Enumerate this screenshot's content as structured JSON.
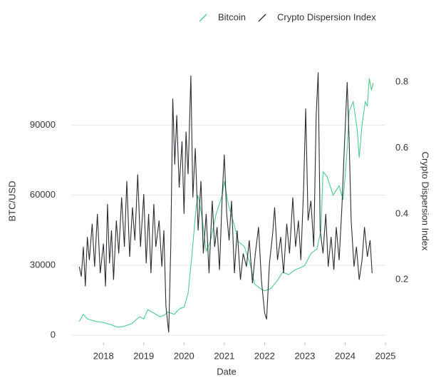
{
  "chart_data": {
    "type": "line",
    "xlabel": "Date",
    "ylabel": "BTC/USD",
    "y2label": "Crypto Dispersion Index",
    "xlim": [
      2017.2,
      2025.0
    ],
    "xticks": [
      2018,
      2019,
      2020,
      2021,
      2022,
      2023,
      2024,
      2025
    ],
    "ylim": [
      -3000,
      113000
    ],
    "yticks": [
      0,
      30000,
      60000,
      90000
    ],
    "y2lim": [
      0.01,
      0.833
    ],
    "y2ticks": [
      0.2,
      0.4,
      0.6,
      0.8
    ],
    "grid": true,
    "legend": "top",
    "series": [
      {
        "name": "Bitcoin",
        "color": "#4ccb8d",
        "x": [
          2017.4,
          2017.5,
          2017.6,
          2017.8,
          2018.0,
          2018.2,
          2018.35,
          2018.5,
          2018.7,
          2018.9,
          2019.0,
          2019.1,
          2019.2,
          2019.4,
          2019.5,
          2019.6,
          2019.75,
          2019.9,
          2020.0,
          2020.1,
          2020.2,
          2020.3,
          2020.35,
          2020.45,
          2020.55,
          2020.65,
          2020.8,
          2020.95,
          2021.0,
          2021.1,
          2021.25,
          2021.35,
          2021.5,
          2021.65,
          2021.75,
          2021.9,
          2022.0,
          2022.15,
          2022.3,
          2022.45,
          2022.6,
          2022.75,
          2022.9,
          2023.0,
          2023.15,
          2023.3,
          2023.4,
          2023.45,
          2023.55,
          2023.7,
          2023.85,
          2023.95,
          2024.0,
          2024.05,
          2024.1,
          2024.2,
          2024.3,
          2024.35,
          2024.42,
          2024.5,
          2024.55,
          2024.6,
          2024.65,
          2024.7
        ],
        "values": [
          6000,
          9000,
          7000,
          6000,
          5500,
          4500,
          3500,
          3800,
          5000,
          8000,
          7000,
          11000,
          10000,
          8000,
          8500,
          10000,
          9000,
          11500,
          12000,
          18000,
          35000,
          55000,
          60000,
          50000,
          36000,
          40000,
          52000,
          60000,
          66000,
          56000,
          47000,
          40000,
          38000,
          30000,
          22000,
          20000,
          19000,
          20000,
          23000,
          27000,
          26000,
          28000,
          29000,
          30000,
          35000,
          37000,
          45000,
          70000,
          68000,
          60000,
          64000,
          58000,
          68000,
          80000,
          96000,
          100000,
          88000,
          76000,
          90000,
          100000,
          98000,
          110000,
          105000,
          108000
        ]
      },
      {
        "name": "Crypto Dispersion Index",
        "color": "#2a2e33",
        "axis": "y2",
        "x": [
          2017.4,
          2017.45,
          2017.5,
          2017.55,
          2017.6,
          2017.65,
          2017.72,
          2017.78,
          2017.85,
          2017.92,
          2018.0,
          2018.05,
          2018.1,
          2018.15,
          2018.2,
          2018.25,
          2018.32,
          2018.38,
          2018.45,
          2018.52,
          2018.58,
          2018.65,
          2018.72,
          2018.78,
          2018.85,
          2018.92,
          2019.0,
          2019.06,
          2019.12,
          2019.18,
          2019.25,
          2019.3,
          2019.38,
          2019.45,
          2019.5,
          2019.55,
          2019.62,
          2019.67,
          2019.72,
          2019.77,
          2019.82,
          2019.88,
          2019.95,
          2020.0,
          2020.05,
          2020.1,
          2020.17,
          2020.22,
          2020.28,
          2020.35,
          2020.42,
          2020.48,
          2020.55,
          2020.62,
          2020.7,
          2020.76,
          2020.82,
          2020.88,
          2020.95,
          2021.0,
          2021.06,
          2021.12,
          2021.18,
          2021.25,
          2021.32,
          2021.4,
          2021.47,
          2021.55,
          2021.62,
          2021.7,
          2021.77,
          2021.85,
          2021.92,
          2022.0,
          2022.05,
          2022.12,
          2022.2,
          2022.25,
          2022.32,
          2022.4,
          2022.47,
          2022.55,
          2022.62,
          2022.7,
          2022.77,
          2022.84,
          2022.9,
          2022.97,
          2023.02,
          2023.08,
          2023.15,
          2023.22,
          2023.28,
          2023.33,
          2023.38,
          2023.45,
          2023.52,
          2023.58,
          2023.65,
          2023.72,
          2023.78,
          2023.85,
          2023.92,
          2023.98,
          2024.05,
          2024.1,
          2024.15,
          2024.22,
          2024.28,
          2024.35,
          2024.42,
          2024.48,
          2024.55,
          2024.62,
          2024.67
        ],
        "values": [
          0.24,
          0.21,
          0.3,
          0.18,
          0.33,
          0.26,
          0.37,
          0.24,
          0.4,
          0.22,
          0.31,
          0.18,
          0.43,
          0.25,
          0.35,
          0.2,
          0.38,
          0.28,
          0.45,
          0.3,
          0.5,
          0.27,
          0.42,
          0.32,
          0.52,
          0.3,
          0.46,
          0.25,
          0.4,
          0.22,
          0.43,
          0.3,
          0.38,
          0.24,
          0.35,
          0.12,
          0.04,
          0.3,
          0.75,
          0.55,
          0.7,
          0.48,
          0.62,
          0.4,
          0.65,
          0.52,
          0.82,
          0.45,
          0.6,
          0.35,
          0.5,
          0.28,
          0.4,
          0.22,
          0.44,
          0.3,
          0.36,
          0.23,
          0.46,
          0.58,
          0.4,
          0.32,
          0.44,
          0.22,
          0.35,
          0.2,
          0.28,
          0.24,
          0.32,
          0.19,
          0.28,
          0.36,
          0.2,
          0.1,
          0.08,
          0.25,
          0.34,
          0.42,
          0.26,
          0.33,
          0.22,
          0.37,
          0.28,
          0.45,
          0.3,
          0.38,
          0.26,
          0.48,
          0.72,
          0.38,
          0.44,
          0.3,
          0.7,
          0.83,
          0.35,
          0.28,
          0.4,
          0.24,
          0.33,
          0.23,
          0.36,
          0.26,
          0.42,
          0.6,
          0.8,
          0.62,
          0.38,
          0.24,
          0.3,
          0.2,
          0.26,
          0.36,
          0.27,
          0.32,
          0.22
        ]
      }
    ]
  }
}
